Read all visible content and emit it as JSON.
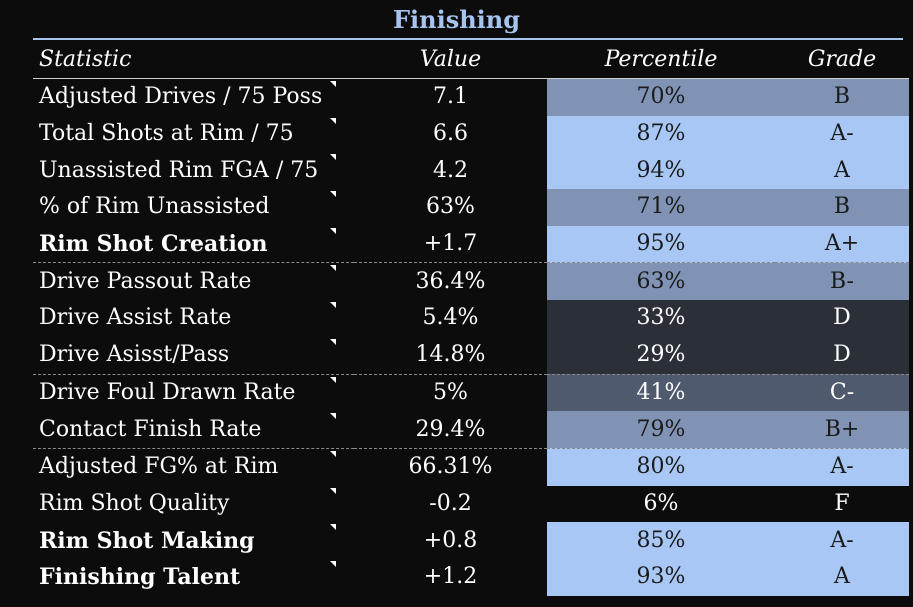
{
  "title": "Finishing",
  "columns": {
    "statistic": "Statistic",
    "value": "Value",
    "percentile": "Percentile",
    "grade": "Grade"
  },
  "colors": {
    "title": "#a6c4ee",
    "light_blue": "#a8c7f4",
    "mid_blue": "#8093b4",
    "slate": "#4f5a6e",
    "dark": "#2a2f38",
    "black": "#0c0c0d"
  },
  "rows": [
    {
      "statistic": "Adjusted Drives / 75 Poss",
      "value": "7.1",
      "percentile": "70%",
      "grade": "B",
      "bold": false,
      "group_start": false,
      "shade": "#8093b4"
    },
    {
      "statistic": "Total Shots at Rim / 75",
      "value": "6.6",
      "percentile": "87%",
      "grade": "A-",
      "bold": false,
      "group_start": false,
      "shade": "#a8c7f4"
    },
    {
      "statistic": "Unassisted Rim FGA / 75",
      "value": "4.2",
      "percentile": "94%",
      "grade": "A",
      "bold": false,
      "group_start": false,
      "shade": "#a8c7f4"
    },
    {
      "statistic": "% of Rim Unassisted",
      "value": "63%",
      "percentile": "71%",
      "grade": "B",
      "bold": false,
      "group_start": false,
      "shade": "#8093b4"
    },
    {
      "statistic": "Rim Shot Creation",
      "value": "+1.7",
      "percentile": "95%",
      "grade": "A+",
      "bold": true,
      "group_start": false,
      "shade": "#a8c7f4"
    },
    {
      "statistic": "Drive Passout Rate",
      "value": "36.4%",
      "percentile": "63%",
      "grade": "B-",
      "bold": false,
      "group_start": true,
      "shade": "#8093b4"
    },
    {
      "statistic": "Drive Assist Rate",
      "value": "5.4%",
      "percentile": "33%",
      "grade": "D",
      "bold": false,
      "group_start": false,
      "shade": "#2a2f38"
    },
    {
      "statistic": "Drive Asisst/Pass",
      "value": "14.8%",
      "percentile": "29%",
      "grade": "D",
      "bold": false,
      "group_start": false,
      "shade": "#2a2f38"
    },
    {
      "statistic": "Drive Foul Drawn Rate",
      "value": "5%",
      "percentile": "41%",
      "grade": "C-",
      "bold": false,
      "group_start": true,
      "shade": "#4f5a6e"
    },
    {
      "statistic": "Contact Finish Rate",
      "value": "29.4%",
      "percentile": "79%",
      "grade": "B+",
      "bold": false,
      "group_start": false,
      "shade": "#8093b4"
    },
    {
      "statistic": "Adjusted FG% at Rim",
      "value": "66.31%",
      "percentile": "80%",
      "grade": "A-",
      "bold": false,
      "group_start": true,
      "shade": "#a8c7f4"
    },
    {
      "statistic": "Rim Shot Quality",
      "value": "-0.2",
      "percentile": "6%",
      "grade": "F",
      "bold": false,
      "group_start": false,
      "shade": "#0c0c0d"
    },
    {
      "statistic": "Rim Shot Making",
      "value": "+0.8",
      "percentile": "85%",
      "grade": "A-",
      "bold": true,
      "group_start": false,
      "shade": "#a8c7f4"
    },
    {
      "statistic": "Finishing Talent",
      "value": "+1.2",
      "percentile": "93%",
      "grade": "A",
      "bold": true,
      "group_start": false,
      "shade": "#a8c7f4"
    }
  ]
}
